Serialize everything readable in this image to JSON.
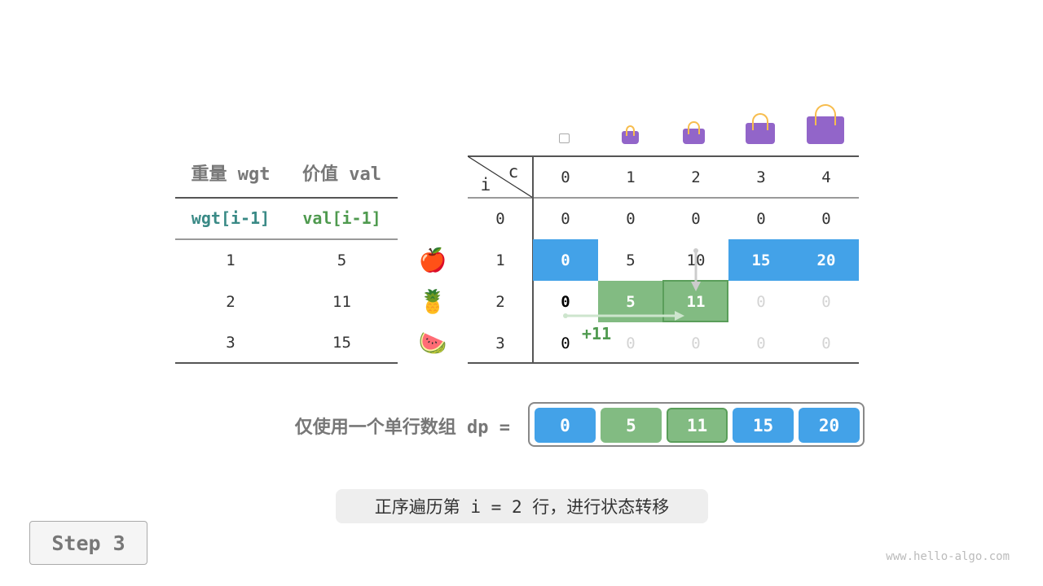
{
  "left_table": {
    "headers": [
      "重量 wgt",
      "价值 val"
    ],
    "subheaders": [
      "wgt[i-1]",
      "val[i-1]"
    ],
    "rows": [
      [
        "1",
        "5"
      ],
      [
        "2",
        "11"
      ],
      [
        "3",
        "15"
      ]
    ],
    "items": [
      "🍎",
      "🍍",
      "🍉"
    ]
  },
  "dp_table": {
    "corner_i": "i",
    "corner_c": "c",
    "cols": [
      "0",
      "1",
      "2",
      "3",
      "4"
    ],
    "row_labels": [
      "0",
      "1",
      "2",
      "3"
    ],
    "rows": [
      [
        "0",
        "0",
        "0",
        "0",
        "0"
      ],
      [
        "0",
        "5",
        "10",
        "15",
        "20"
      ],
      [
        "0",
        "5",
        "11",
        "0",
        "0"
      ],
      [
        "0",
        "0",
        "0",
        "0",
        "0"
      ]
    ],
    "annotation": "+11"
  },
  "array": {
    "label": "仅使用一个单行数组 dp =",
    "values": [
      "0",
      "5",
      "11",
      "15",
      "20"
    ]
  },
  "caption": "正序遍历第 i = 2 行，进行状态转移",
  "step_button": "Step 3",
  "watermark": "www.hello-algo.com",
  "colors": {
    "blue": "#43a2e8",
    "green": "#82bb82",
    "green_border": "#5a9e5a",
    "bag": "#9265c9"
  }
}
